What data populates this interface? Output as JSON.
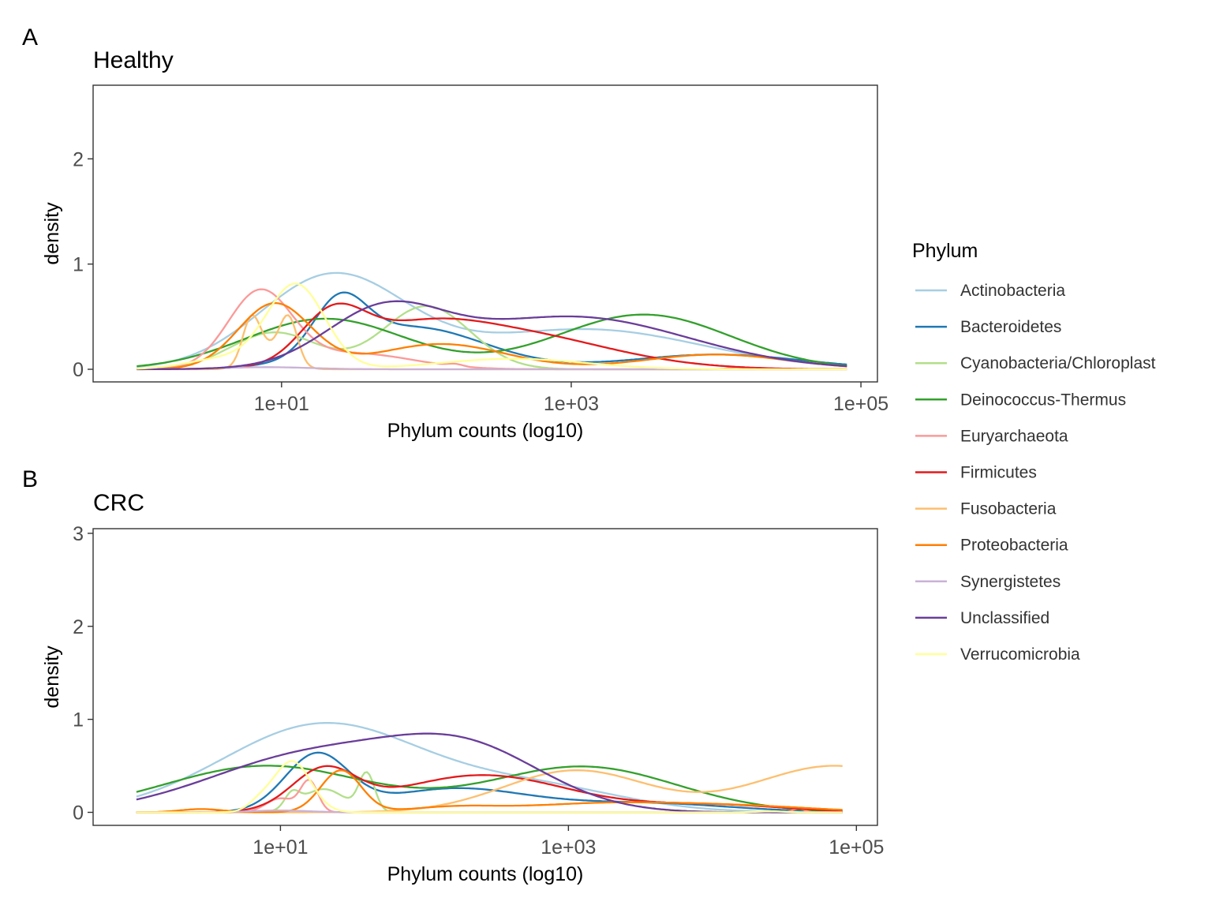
{
  "figure": {
    "legend": {
      "title": "Phylum",
      "position": "right",
      "entries": [
        {
          "name": "Actinobacteria",
          "color": "#a6cee3"
        },
        {
          "name": "Bacteroidetes",
          "color": "#1f78b4"
        },
        {
          "name": "Cyanobacteria/Chloroplast",
          "color": "#b2df8a"
        },
        {
          "name": "Deinococcus-Thermus",
          "color": "#33a02c"
        },
        {
          "name": "Euryarchaeota",
          "color": "#fb9a99"
        },
        {
          "name": "Firmicutes",
          "color": "#e31a1c"
        },
        {
          "name": "Fusobacteria",
          "color": "#fdbf6f"
        },
        {
          "name": "Proteobacteria",
          "color": "#ff7f00"
        },
        {
          "name": "Synergistetes",
          "color": "#cab2d6"
        },
        {
          "name": "Unclassified",
          "color": "#6a3d9a"
        },
        {
          "name": "Verrucomicrobia",
          "color": "#ffff99"
        }
      ]
    }
  },
  "chart_data": [
    {
      "type": "line",
      "panel_tag": "A",
      "title": "Healthy",
      "xlabel": "Phylum counts (log10)",
      "ylabel": "density",
      "x_scale": "log10",
      "xlim": [
        0.5,
        130000
      ],
      "ylim": [
        -0.12,
        2.7
      ],
      "x_ticks": [
        {
          "value": 10,
          "label": "1e+01"
        },
        {
          "value": 1000,
          "label": "1e+03"
        },
        {
          "value": 100000,
          "label": "1e+05"
        }
      ],
      "y_ticks": [
        {
          "value": 0,
          "label": "0"
        },
        {
          "value": 1,
          "label": "1"
        },
        {
          "value": 2,
          "label": "2"
        }
      ],
      "grid": false,
      "x_min": 1,
      "x_max": 80000,
      "series": [
        {
          "name": "Actinobacteria",
          "components": [
            [
              1.35,
              0.5,
              0.88
            ],
            [
              3.1,
              0.8,
              0.38
            ]
          ]
        },
        {
          "name": "Bacteroidetes",
          "components": [
            [
              1.4,
              0.18,
              0.48
            ],
            [
              1.9,
              0.5,
              0.4
            ],
            [
              4.0,
              0.6,
              0.14
            ]
          ]
        },
        {
          "name": "Cyanobacteria/Chloroplast",
          "components": [
            [
              0.95,
              0.3,
              0.35
            ],
            [
              2.0,
              0.3,
              0.6
            ]
          ]
        },
        {
          "name": "Deinococcus-Thermus",
          "components": [
            [
              1.3,
              0.55,
              0.48
            ],
            [
              3.5,
              0.6,
              0.52
            ]
          ]
        },
        {
          "name": "Euryarchaeota",
          "components": [
            [
              0.85,
              0.22,
              0.72
            ],
            [
              2.2,
              0.05,
              0.02
            ],
            [
              4.15,
              0.06,
              0.02
            ],
            [
              1.5,
              0.4,
              0.15
            ]
          ]
        },
        {
          "name": "Firmicutes",
          "components": [
            [
              1.35,
              0.22,
              0.44
            ],
            [
              2.5,
              0.7,
              0.36
            ],
            [
              1.9,
              0.4,
              0.2
            ]
          ]
        },
        {
          "name": "Fusobacteria",
          "components": [
            [
              0.79,
              0.06,
              0.4
            ],
            [
              1.05,
              0.06,
              0.4
            ],
            [
              0.92,
              0.12,
              0.2
            ]
          ]
        },
        {
          "name": "Proteobacteria",
          "components": [
            [
              0.95,
              0.25,
              0.62
            ],
            [
              2.1,
              0.45,
              0.24
            ],
            [
              4.0,
              0.5,
              0.14
            ]
          ]
        },
        {
          "name": "Synergistetes",
          "components": [
            [
              0.9,
              0.3,
              0.02
            ]
          ]
        },
        {
          "name": "Unclassified",
          "components": [
            [
              1.7,
              0.4,
              0.5
            ],
            [
              3.0,
              0.8,
              0.5
            ]
          ]
        },
        {
          "name": "Verrucomicrobia",
          "components": [
            [
              1.1,
              0.2,
              0.8
            ],
            [
              0.6,
              0.25,
              0.1
            ],
            [
              2.6,
              0.5,
              0.1
            ]
          ]
        }
      ]
    },
    {
      "type": "line",
      "panel_tag": "B",
      "title": "CRC",
      "xlabel": "Phylum counts (log10)",
      "ylabel": "density",
      "x_scale": "log10",
      "xlim": [
        0.5,
        140000
      ],
      "ylim": [
        -0.14,
        3.05
      ],
      "x_ticks": [
        {
          "value": 10,
          "label": "1e+01"
        },
        {
          "value": 1000,
          "label": "1e+03"
        },
        {
          "value": 100000,
          "label": "1e+05"
        }
      ],
      "y_ticks": [
        {
          "value": 0,
          "label": "0"
        },
        {
          "value": 1,
          "label": "1"
        },
        {
          "value": 2,
          "label": "2"
        },
        {
          "value": 3,
          "label": "3"
        }
      ],
      "grid": false,
      "x_min": 1,
      "x_max": 80000,
      "series": [
        {
          "name": "Actinobacteria",
          "components": [
            [
              1.3,
              0.7,
              0.95
            ],
            [
              2.8,
              0.6,
              0.25
            ]
          ]
        },
        {
          "name": "Bacteroidetes",
          "components": [
            [
              1.25,
              0.22,
              0.6
            ],
            [
              2.2,
              0.5,
              0.25
            ],
            [
              3.5,
              0.6,
              0.1
            ]
          ]
        },
        {
          "name": "Cyanobacteria/Chloroplast",
          "components": [
            [
              1.6,
              0.055,
              0.4
            ],
            [
              1.08,
              0.05,
              0.15
            ],
            [
              1.3,
              0.15,
              0.25
            ]
          ]
        },
        {
          "name": "Deinococcus-Thermus",
          "components": [
            [
              0.9,
              0.7,
              0.5
            ],
            [
              3.1,
              0.65,
              0.49
            ]
          ]
        },
        {
          "name": "Euryarchaeota",
          "components": [
            [
              1.2,
              0.06,
              0.33
            ],
            [
              1.0,
              0.1,
              0.15
            ],
            [
              4.6,
              0.04,
              0.04
            ]
          ]
        },
        {
          "name": "Firmicutes",
          "components": [
            [
              1.3,
              0.22,
              0.42
            ],
            [
              2.4,
              0.6,
              0.4
            ],
            [
              4.0,
              0.5,
              0.08
            ]
          ]
        },
        {
          "name": "Fusobacteria",
          "components": [
            [
              3.05,
              0.5,
              0.45
            ],
            [
              4.85,
              0.55,
              0.5
            ]
          ]
        },
        {
          "name": "Proteobacteria",
          "components": [
            [
              1.42,
              0.14,
              0.45
            ],
            [
              0.45,
              0.15,
              0.035
            ],
            [
              2.2,
              0.3,
              0.05
            ],
            [
              3.3,
              0.6,
              0.1
            ],
            [
              4.3,
              0.5,
              0.05
            ]
          ]
        },
        {
          "name": "Synergistetes",
          "components": [
            [
              1.0,
              0.2,
              0.02
            ]
          ]
        },
        {
          "name": "Unclassified",
          "components": [
            [
              2.3,
              0.55,
              0.62
            ],
            [
              1.2,
              0.7,
              0.6
            ]
          ]
        },
        {
          "name": "Verrucomicrobia",
          "components": [
            [
              1.08,
              0.13,
              0.55
            ],
            [
              0.85,
              0.08,
              0.08
            ],
            [
              4.4,
              0.1,
              0.01
            ]
          ]
        }
      ]
    }
  ]
}
